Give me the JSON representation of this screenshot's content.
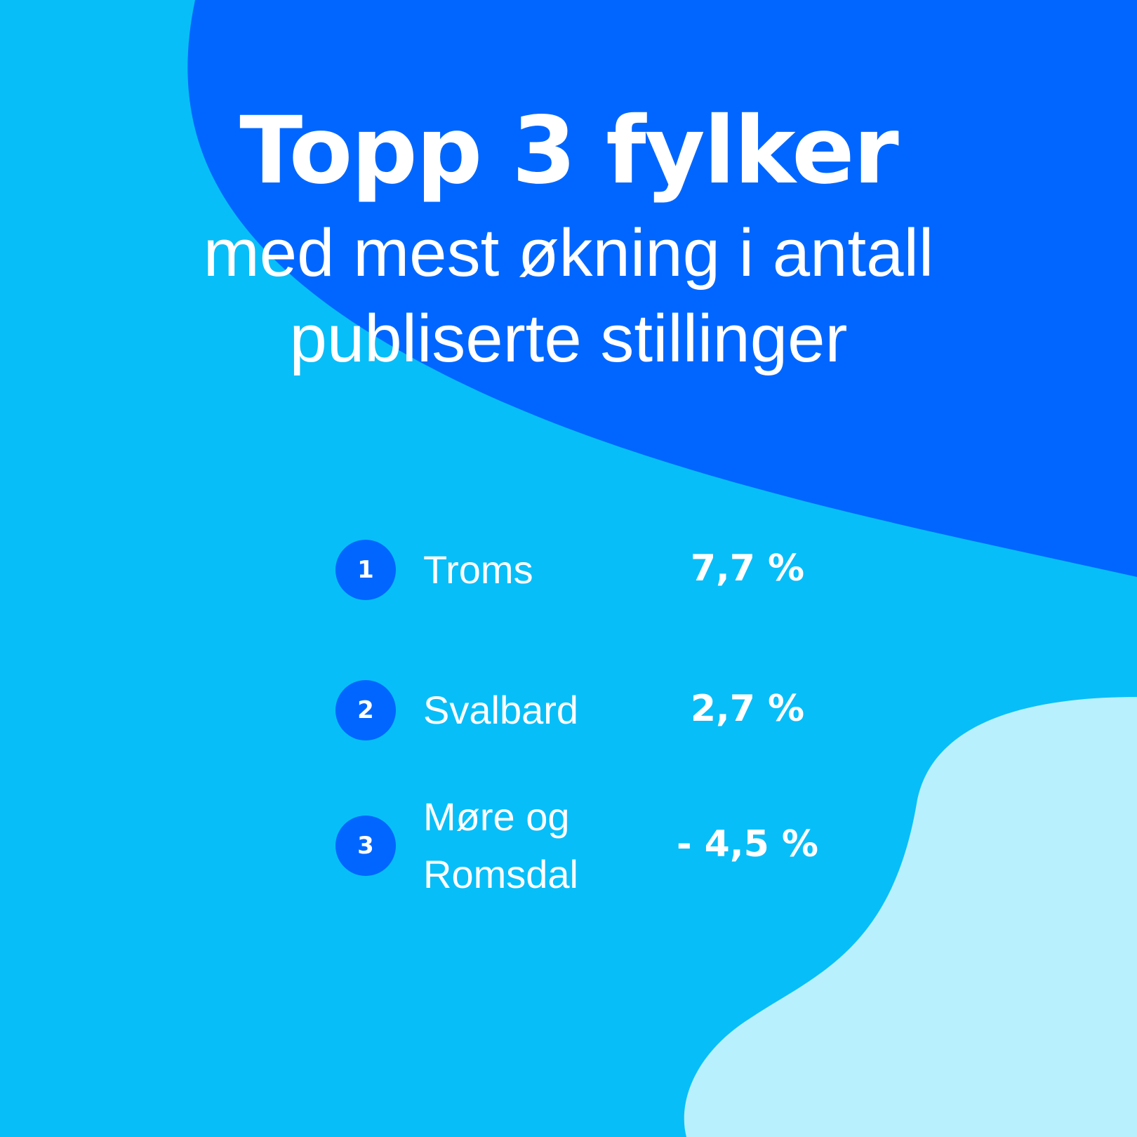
{
  "colors": {
    "background": "#08BEF8",
    "dark_blob": "#0066FF",
    "light_blob": "#B8F0FE",
    "badge": "#0066FF",
    "text": "#FFFFFF"
  },
  "heading": {
    "title": "Topp 3 fylker",
    "subtitle_line1": "med mest økning i antall",
    "subtitle_line2": "publiserte stillinger"
  },
  "ranking": [
    {
      "rank": "1",
      "name_line1": "Troms",
      "name_line2": "",
      "value": "7,7 %"
    },
    {
      "rank": "2",
      "name_line1": "Svalbard",
      "name_line2": "",
      "value": "2,7 %"
    },
    {
      "rank": "3",
      "name_line1": "Møre og",
      "name_line2": "Romsdal",
      "value": "- 4,5 %"
    }
  ]
}
